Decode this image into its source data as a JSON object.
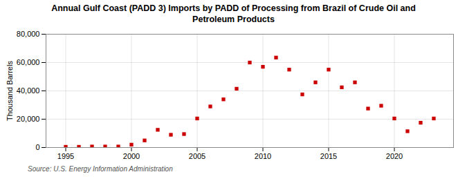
{
  "chart_data": {
    "type": "scatter",
    "title": "Annual Gulf Coast (PADD 3) Imports by PADD of Processing from Brazil of Crude Oil and\nPetroleum Products",
    "ylabel": "Thousand Barrels",
    "annotation": "Source: U.S. Energy Information Administration",
    "x": [
      1995,
      1996,
      1997,
      1998,
      1999,
      2000,
      2001,
      2002,
      2003,
      2004,
      2005,
      2006,
      2007,
      2008,
      2009,
      2010,
      2011,
      2012,
      2013,
      2014,
      2015,
      2016,
      2017,
      2018,
      2019,
      2020,
      2021,
      2022,
      2023
    ],
    "values": [
      500,
      500,
      700,
      700,
      700,
      2000,
      5000,
      12500,
      9000,
      9500,
      20500,
      29000,
      34000,
      41500,
      60000,
      57000,
      63500,
      55000,
      37500,
      46000,
      55000,
      42500,
      46000,
      27500,
      29500,
      20500,
      11500,
      17500,
      20500
    ],
    "color": "#cc0000",
    "marker": "square",
    "xlim": [
      1993.5,
      2024.5
    ],
    "xticks": [
      1995,
      2000,
      2005,
      2010,
      2015,
      2020
    ],
    "ylim": [
      0,
      80000
    ],
    "yticks": [
      0,
      {
        "value": 20000,
        "label": "20,000"
      },
      {
        "value": 40000,
        "label": "40,000"
      },
      {
        "value": 60000,
        "label": "60,000"
      },
      {
        "value": 80000,
        "label": "80,000"
      }
    ],
    "grid": true
  }
}
